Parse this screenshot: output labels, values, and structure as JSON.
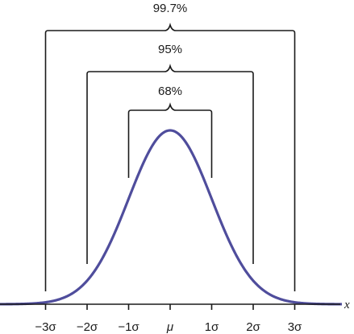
{
  "chart_data": {
    "type": "line",
    "title": "",
    "xlabel": "x",
    "ylabel": "",
    "xlim": [
      -4,
      4
    ],
    "grid": false,
    "distribution": "normal",
    "mean": 0,
    "sd": 1,
    "x_ticks": [
      {
        "value": -3,
        "label": "−3σ"
      },
      {
        "value": -2,
        "label": "−2σ"
      },
      {
        "value": -1,
        "label": "−1σ"
      },
      {
        "value": 0,
        "label": "μ"
      },
      {
        "value": 1,
        "label": "1σ"
      },
      {
        "value": 2,
        "label": "2σ"
      },
      {
        "value": 3,
        "label": "3σ"
      }
    ],
    "intervals": [
      {
        "from": -1,
        "to": 1,
        "label": "68%"
      },
      {
        "from": -2,
        "to": 2,
        "label": "95%"
      },
      {
        "from": -3,
        "to": 3,
        "label": "99.7%"
      }
    ],
    "colors": {
      "curve": "#4f4d9c",
      "lines": "#1a1a1a"
    }
  }
}
